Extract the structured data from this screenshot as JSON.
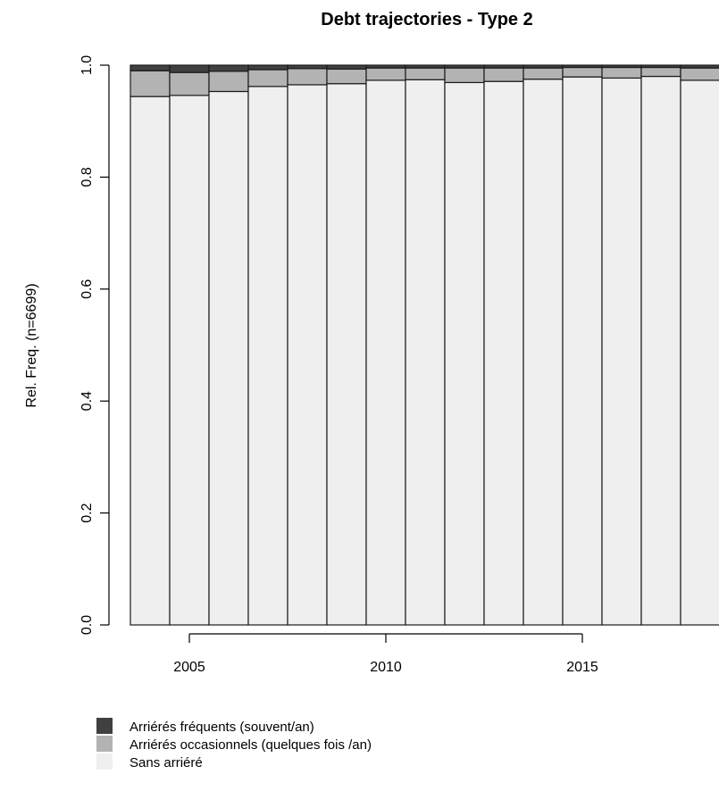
{
  "chart_data": {
    "type": "bar",
    "stacked": true,
    "title": "Debt trajectories - Type 2",
    "ylabel": "Rel. Freq. (n=6699)",
    "xlabel": "",
    "ylim": [
      0,
      1
    ],
    "yticks": [
      "0.0",
      "0.2",
      "0.4",
      "0.6",
      "0.8",
      "1.0"
    ],
    "xticks": [
      "2005",
      "2010",
      "2015"
    ],
    "categories": [
      2004,
      2005,
      2006,
      2007,
      2008,
      2009,
      2010,
      2011,
      2012,
      2013,
      2014,
      2015,
      2016,
      2017,
      2018
    ],
    "series": [
      {
        "name": "Sans arriéré",
        "color": "#efefef",
        "values": [
          0.944,
          0.946,
          0.953,
          0.962,
          0.965,
          0.967,
          0.973,
          0.974,
          0.969,
          0.971,
          0.975,
          0.979,
          0.977,
          0.98,
          0.973
        ]
      },
      {
        "name": "Arriérés occasionnels (quelques fois /an)",
        "color": "#b3b3b3",
        "values": [
          0.046,
          0.041,
          0.036,
          0.03,
          0.029,
          0.026,
          0.022,
          0.021,
          0.026,
          0.024,
          0.02,
          0.017,
          0.019,
          0.016,
          0.022
        ]
      },
      {
        "name": "Arriérés fréquents (souvent/an)",
        "color": "#404040",
        "values": [
          0.01,
          0.013,
          0.011,
          0.008,
          0.006,
          0.007,
          0.005,
          0.005,
          0.005,
          0.005,
          0.005,
          0.004,
          0.004,
          0.004,
          0.005
        ]
      }
    ],
    "legend": {
      "placement": "bottom-left",
      "items": [
        {
          "label": "Arriérés fréquents (souvent/an)",
          "color": "#404040"
        },
        {
          "label": "Arriérés occasionnels (quelques fois /an)",
          "color": "#b3b3b3"
        },
        {
          "label": "Sans arriéré",
          "color": "#efefef"
        }
      ]
    },
    "grid": false
  }
}
